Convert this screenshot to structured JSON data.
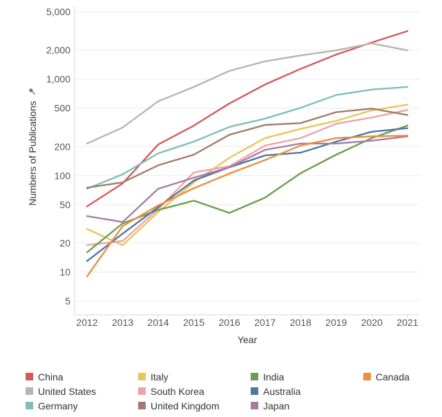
{
  "chart_data": {
    "type": "line",
    "xlabel": "Year",
    "ylabel": "Numbers of Publications",
    "ylabel_icon": "pin-icon",
    "yscale": "log",
    "ylim": [
      3.6,
      5800
    ],
    "xlim": [
      2012,
      2021
    ],
    "y_ticks": [
      5,
      10,
      20,
      50,
      100,
      200,
      500,
      1000,
      2000,
      5000
    ],
    "y_tick_labels": [
      "5",
      "10",
      "20",
      "50",
      "100",
      "200",
      "500",
      "1,000",
      "2,000",
      "5,000"
    ],
    "x": [
      2012,
      2013,
      2014,
      2015,
      2016,
      2017,
      2018,
      2019,
      2020,
      2021
    ],
    "x_tick_labels": [
      "2012",
      "2013",
      "2014",
      "2015",
      "2016",
      "2017",
      "2018",
      "2019",
      "2020",
      "2021"
    ],
    "grid": "horizontal",
    "legend_placement": "bottom",
    "series": [
      {
        "name": "China",
        "color": "#d45a5a",
        "values": [
          48,
          83,
          210,
          330,
          560,
          880,
          1280,
          1800,
          2400,
          3150
        ]
      },
      {
        "name": "United States",
        "color": "#b9b3b3",
        "values": [
          215,
          315,
          590,
          830,
          1220,
          1530,
          1760,
          1990,
          2350,
          1990
        ]
      },
      {
        "name": "Germany",
        "color": "#7fbfb5",
        "values": [
          73,
          103,
          170,
          225,
          320,
          390,
          505,
          685,
          780,
          830
        ]
      },
      {
        "name": "Italy",
        "color": "#e8c45a",
        "values": [
          28,
          19,
          42,
          85,
          153,
          245,
          305,
          370,
          475,
          545
        ]
      },
      {
        "name": "South Korea",
        "color": "#f0a3a6",
        "values": [
          19,
          21,
          45,
          108,
          125,
          205,
          245,
          345,
          400,
          480
        ]
      },
      {
        "name": "United Kingdom",
        "color": "#a07d6b",
        "values": [
          75,
          85,
          128,
          165,
          265,
          335,
          350,
          455,
          495,
          425
        ]
      },
      {
        "name": "India",
        "color": "#6a9e4e",
        "values": [
          16,
          32,
          44,
          55,
          41,
          59,
          106,
          165,
          245,
          330
        ]
      },
      {
        "name": "Australia",
        "color": "#4f77a3",
        "values": [
          13,
          25,
          47,
          89,
          122,
          162,
          173,
          225,
          285,
          310
        ]
      },
      {
        "name": "Japan",
        "color": "#a87ca6",
        "values": [
          38,
          33,
          73,
          95,
          122,
          185,
          215,
          215,
          230,
          255
        ]
      },
      {
        "name": "Canada",
        "color": "#eb8f3c",
        "values": [
          9,
          30,
          49,
          74,
          105,
          145,
          205,
          245,
          255,
          260
        ]
      }
    ]
  }
}
